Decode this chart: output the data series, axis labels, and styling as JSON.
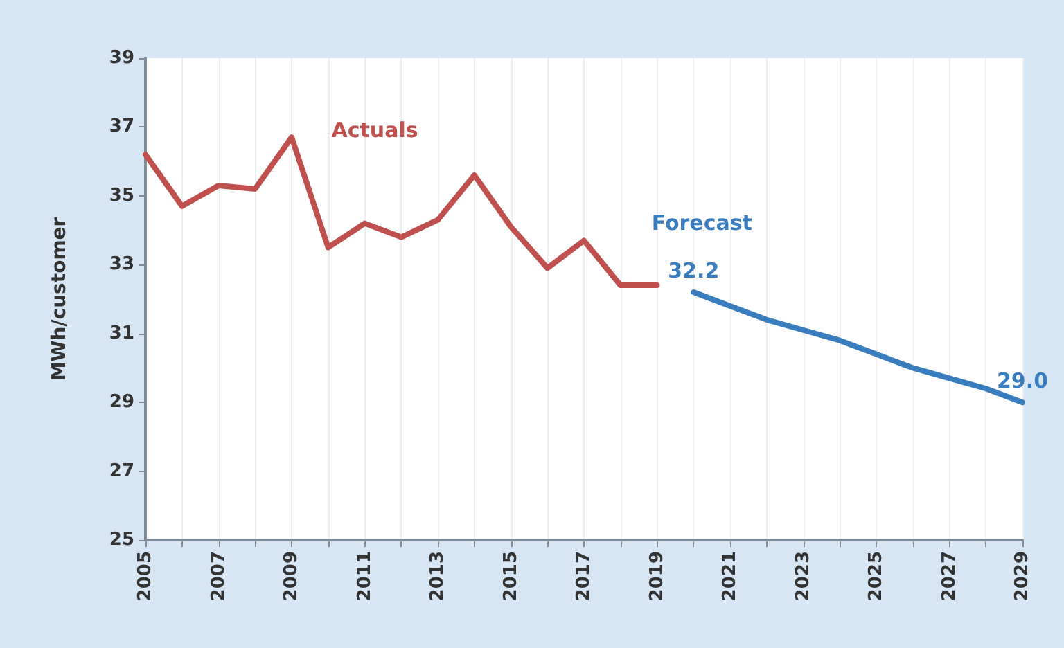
{
  "chart_data": {
    "type": "line",
    "ylabel": "MWh/customer",
    "categories": [
      "2005",
      null,
      "2007",
      null,
      "2009",
      null,
      "2011",
      null,
      "2013",
      null,
      "2015",
      null,
      "2017",
      null,
      "2019",
      null,
      "2021",
      null,
      "2023",
      null,
      "2025",
      null,
      "2027",
      null,
      "2029"
    ],
    "series": [
      {
        "name": "Actuals",
        "color": "#c0504d",
        "values": [
          36.2,
          34.7,
          35.3,
          35.2,
          36.7,
          33.5,
          34.2,
          33.8,
          34.3,
          35.6,
          34.1,
          32.9,
          33.7,
          32.4,
          32.4,
          null,
          null,
          null,
          null,
          null,
          null,
          null,
          null,
          null,
          null
        ]
      },
      {
        "name": "Forecast",
        "color": "#3a7dbf",
        "values": [
          null,
          null,
          null,
          null,
          null,
          null,
          null,
          null,
          null,
          null,
          null,
          null,
          null,
          null,
          null,
          32.2,
          31.8,
          31.4,
          31.1,
          30.8,
          30.4,
          30.0,
          29.7,
          29.4,
          29.0
        ],
        "value_labels": [
          null,
          null,
          null,
          null,
          null,
          null,
          null,
          null,
          null,
          null,
          null,
          null,
          null,
          null,
          null,
          "32.2",
          null,
          null,
          null,
          null,
          null,
          null,
          null,
          null,
          "29.0"
        ]
      }
    ],
    "ylim": [
      25,
      39
    ],
    "yticks": [
      25,
      27,
      29,
      31,
      33,
      35,
      37,
      39
    ],
    "grid": "x",
    "legend": false,
    "marker": "none",
    "line_style": "solid"
  }
}
